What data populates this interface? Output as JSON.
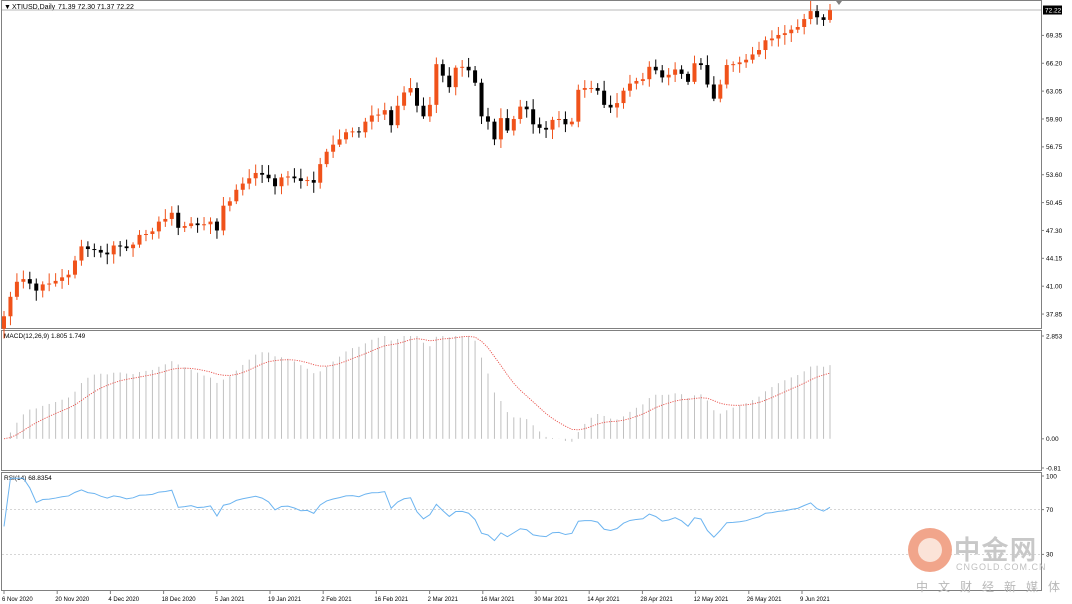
{
  "header": {
    "arrow_glyph": "▼",
    "symbol": "XTIUSD,Daily",
    "ohlc": "71.39 72.30 71.37 72.22"
  },
  "indicators": {
    "macd_label": "MACD(12,26,9) 1.805 1.749",
    "rsi_label": "RSI(14) 68.8354"
  },
  "watermark": {
    "brand": "中金网",
    "site": "CNGOLD.COM.CN",
    "slogan": "中文财经新媒体"
  },
  "colors": {
    "bull": "#f0521a",
    "bear": "#000000",
    "macd_hist": "#c0c0c0",
    "macd_signal": "#e8504a",
    "rsi_line": "#6cb4f0",
    "price_line": "#a0a0a0",
    "grid_border": "#808080"
  },
  "chart_data": [
    {
      "type": "candlestick",
      "title": "XTIUSD,Daily",
      "ohlc_last": {
        "open": 71.39,
        "high": 72.3,
        "low": 71.37,
        "close": 72.22
      },
      "current_price_label": "72.22",
      "y_tick_labels": [
        "69.35",
        "66.20",
        "63.05",
        "59.90",
        "56.75",
        "53.60",
        "50.45",
        "47.30",
        "44.15",
        "41.00",
        "37.85"
      ],
      "ylim": [
        36.5,
        72.9
      ],
      "x_tick_labels": [
        "6 Nov 2020",
        "20 Nov 2020",
        "4 Dec 2020",
        "18 Dec 2020",
        "5 Jan 2021",
        "19 Jan 2021",
        "2 Feb 2021",
        "16 Feb 2021",
        "2 Mar 2021",
        "16 Mar 2021",
        "30 Mar 2021",
        "14 Apr 2021",
        "28 Apr 2021",
        "12 May 2021",
        "26 May 2021",
        "9 Jun 2021"
      ],
      "closes": [
        37.6,
        39.8,
        41.5,
        41.8,
        41.3,
        40.5,
        41.2,
        41.3,
        41.6,
        42.0,
        42.3,
        43.9,
        45.5,
        45.2,
        45.1,
        44.8,
        44.6,
        45.6,
        45.5,
        45.3,
        45.7,
        46.8,
        46.9,
        47.2,
        48.3,
        48.6,
        49.3,
        47.6,
        47.8,
        48.1,
        47.9,
        48.0,
        48.3,
        47.3,
        50.1,
        50.6,
        51.9,
        52.6,
        53.2,
        53.8,
        53.6,
        53.2,
        52.3,
        53.3,
        53.4,
        53.2,
        52.9,
        53.0,
        52.7,
        54.8,
        56.2,
        57.0,
        57.6,
        58.4,
        58.5,
        58.4,
        59.6,
        60.3,
        60.4,
        60.9,
        59.2,
        61.4,
        62.9,
        63.4,
        61.4,
        60.2,
        61.5,
        66.1,
        64.8,
        63.5,
        65.7,
        65.8,
        65.4,
        64.0,
        60.2,
        59.6,
        57.6,
        60.0,
        58.6,
        59.9,
        61.3,
        61.0,
        59.3,
        58.9,
        58.7,
        59.8,
        59.9,
        59.3,
        59.6,
        63.2,
        63.4,
        63.4,
        63.1,
        61.5,
        61.2,
        61.7,
        63.1,
        63.9,
        64.2,
        64.4,
        65.8,
        65.4,
        64.6,
        64.9,
        65.5,
        65.0,
        64.1,
        66.2,
        66.0,
        63.8,
        62.2,
        63.8,
        66.0,
        66.1,
        66.3,
        66.6,
        67.2,
        67.7,
        68.8,
        69.0,
        69.4,
        69.6,
        70.0,
        70.3,
        71.2,
        72.1,
        71.4,
        71.1,
        72.2
      ],
      "resolution": "Daily"
    },
    {
      "type": "line",
      "title": "MACD(12,26,9) 1.805 1.749",
      "series": [
        {
          "name": "MACD",
          "style": "histogram"
        },
        {
          "name": "Signal",
          "style": "dotted"
        }
      ],
      "y_tick_labels": [
        "2.853",
        "0.00",
        "-0.81"
      ],
      "ylim": [
        -0.81,
        2.853
      ],
      "last_values": {
        "macd": 1.805,
        "signal": 1.749
      }
    },
    {
      "type": "line",
      "title": "RSI(14) 68.8354",
      "series": [
        {
          "name": "RSI(14)"
        }
      ],
      "y_tick_labels": [
        "100",
        "70",
        "30"
      ],
      "ylim": [
        0,
        100
      ],
      "levels": [
        70,
        30
      ],
      "last_value": 68.8354
    }
  ]
}
